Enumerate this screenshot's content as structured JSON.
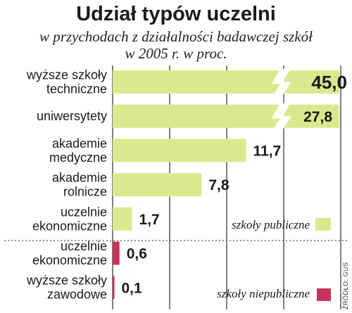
{
  "chart_data": {
    "type": "bar",
    "orientation": "horizontal",
    "title": "Udział typów uczelni",
    "subtitle": [
      "w przychodach z działalności badawczej szkół",
      "w 2005 r. w proc."
    ],
    "categories": [
      [
        "wyższe szkoły",
        "techniczne"
      ],
      [
        "uniwersytety"
      ],
      [
        "akademie",
        "medyczne"
      ],
      [
        "akademie",
        "rolnicze"
      ],
      [
        "uczelnie",
        "ekonomiczne"
      ],
      [
        "uczelnie",
        "ekonomiczne"
      ],
      [
        "wyższe szkoły",
        "zawodowe"
      ]
    ],
    "values": [
      45.0,
      27.8,
      11.7,
      7.8,
      1.7,
      0.6,
      0.1
    ],
    "value_labels": [
      "45,0",
      "27,8",
      "11,7",
      "7,8",
      "1,7",
      "0,6",
      "0,1"
    ],
    "groups": [
      "public",
      "public",
      "public",
      "public",
      "public",
      "private",
      "private"
    ],
    "broken_axis_bars": [
      0,
      1
    ],
    "legend": [
      {
        "label": "szkoły publiczne",
        "color": "#d9ea8e"
      },
      {
        "label": "szkoły niepubliczne",
        "color": "#c8345a"
      }
    ],
    "source": "ŹRÓDŁO: GUS",
    "grid": true,
    "legend_placement": "right"
  }
}
